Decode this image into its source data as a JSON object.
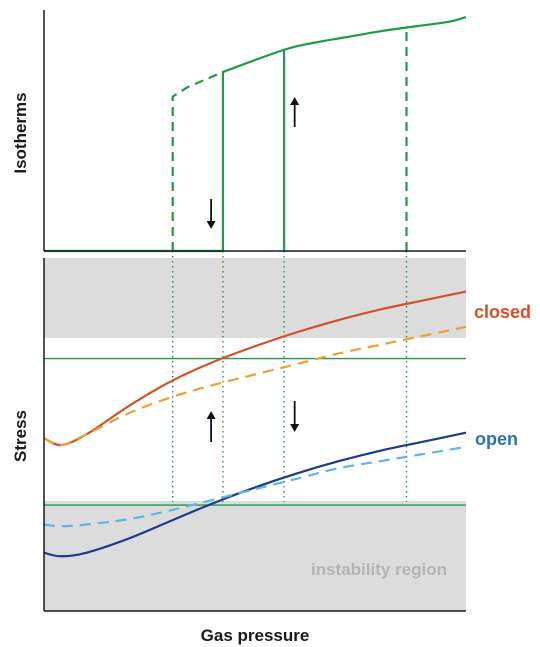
{
  "chart_data": [
    {
      "type": "line",
      "panel": "top",
      "ylabel": "Isotherms",
      "xlabel": "",
      "xlim": [
        0,
        100
      ],
      "ylim": [
        0,
        100
      ],
      "grid": false,
      "series": [
        {
          "style": "solid",
          "color": "#1f9a45",
          "x": [
            0,
            42.4,
            42.4,
            56.9,
            64,
            72,
            80,
            88,
            96,
            100
          ],
          "y": [
            0,
            0,
            76.5,
            86,
            89,
            91.5,
            94,
            96,
            98,
            100
          ]
        },
        {
          "style": "dashed",
          "color": "#1f9a45",
          "x": [
            30.5,
            30.5,
            34,
            42.4
          ],
          "y": [
            0,
            66,
            70,
            76.5
          ]
        },
        {
          "style": "solid",
          "color": "#1f9a45",
          "x": [
            56.9,
            56.9
          ],
          "y": [
            0,
            86
          ]
        },
        {
          "style": "dashed",
          "color": "#1f9a45",
          "x": [
            85.9,
            85.9
          ],
          "y": [
            0,
            95
          ]
        }
      ],
      "arrows": [
        {
          "x": 39.6,
          "direction": "down"
        },
        {
          "x": 59.4,
          "direction": "up"
        }
      ]
    },
    {
      "type": "line",
      "panel": "bottom",
      "xlabel": "Gas pressure",
      "ylabel": "Stress",
      "xlim": [
        0,
        100
      ],
      "ylim": [
        0,
        100
      ],
      "grid": false,
      "series": [
        {
          "name": "closed",
          "style": "solid",
          "color": "#d4502b",
          "x": [
            0,
            4,
            10,
            20,
            30,
            40,
            50,
            60,
            70,
            80,
            90,
            100
          ],
          "y": [
            49,
            47,
            50,
            58,
            65,
            70.5,
            75,
            79,
            82.5,
            85.5,
            88,
            90.5
          ]
        },
        {
          "style": "dashed",
          "color": "#f0a030",
          "x": [
            0,
            4,
            10,
            20,
            30,
            40,
            50,
            60,
            70,
            80,
            90,
            100
          ],
          "y": [
            49,
            47,
            50,
            56,
            60.5,
            64,
            67,
            70,
            73,
            75.5,
            78,
            80.5
          ]
        },
        {
          "name": "open",
          "style": "solid",
          "color": "#1e3a8a",
          "x": [
            0,
            4,
            10,
            20,
            30,
            40,
            50,
            60,
            70,
            80,
            90,
            100
          ],
          "y": [
            16.5,
            15.5,
            16.5,
            20.5,
            25.5,
            30.5,
            35,
            39,
            42.5,
            45.5,
            48,
            50.5
          ]
        },
        {
          "style": "dashed",
          "color": "#5ab8e6",
          "x": [
            0,
            4,
            10,
            20,
            30,
            40,
            50,
            60,
            70,
            80,
            90,
            100
          ],
          "y": [
            24.5,
            24,
            24.5,
            26,
            28.5,
            31.5,
            34.5,
            37.5,
            40.5,
            42.5,
            44.5,
            46.5
          ]
        }
      ],
      "thresholds": [
        71.5,
        30
      ],
      "shaded_region": {
        "label": "instability region",
        "y_ranges": [
          [
            71.5,
            100
          ],
          [
            0,
            30
          ]
        ]
      },
      "arrows": [
        {
          "x": 39.6,
          "direction": "up"
        },
        {
          "x": 59.4,
          "direction": "down"
        }
      ],
      "guide_lines_x": [
        30.5,
        42.4,
        56.9,
        85.9
      ]
    }
  ],
  "labels": {
    "top_ylabel": "Isotherms",
    "bottom_ylabel": "Stress",
    "xlabel": "Gas pressure",
    "closed": "closed",
    "open": "open",
    "instability": "instability region"
  },
  "colors": {
    "green": "#1f9a45",
    "closed_solid": "#d4502b",
    "closed_dashed": "#f0a030",
    "open_solid": "#1e3a8a",
    "open_dashed": "#5ab8e6",
    "shade": "#dcdcdc",
    "label_closed": "#d4502b",
    "label_open": "#2a74b8",
    "label_instability": "#b4b4b4"
  }
}
